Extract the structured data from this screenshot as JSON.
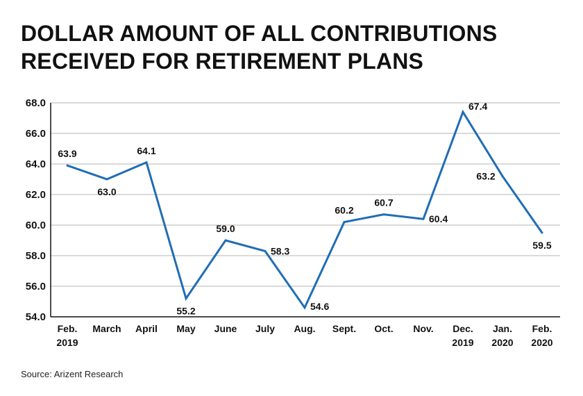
{
  "title": {
    "line1": "DOLLAR AMOUNT OF ALL CONTRIBUTIONS",
    "line2": "RECEIVED FOR RETIREMENT PLANS"
  },
  "source": "Source: Arizent Research",
  "colors": {
    "line": "#1f6db5",
    "grid": "#b5b5b5",
    "axis": "#111111"
  },
  "chart_data": {
    "type": "line",
    "categories": [
      [
        "Feb.",
        "2019"
      ],
      [
        "March"
      ],
      [
        "April"
      ],
      [
        "May"
      ],
      [
        "June"
      ],
      [
        "July"
      ],
      [
        "Aug."
      ],
      [
        "Sept."
      ],
      [
        "Oct."
      ],
      [
        "Nov."
      ],
      [
        "Dec.",
        "2019"
      ],
      [
        "Jan.",
        "2020"
      ],
      [
        "Feb.",
        "2020"
      ]
    ],
    "series": [
      {
        "values": [
          63.9,
          63.0,
          64.1,
          55.2,
          59.0,
          58.3,
          54.6,
          60.2,
          60.7,
          60.4,
          67.4,
          63.2,
          59.5
        ]
      }
    ],
    "data_labels": [
      "63.9",
      "63.0",
      "64.1",
      "55.2",
      "59.0",
      "58.3",
      "54.6",
      "60.2",
      "60.7",
      "60.4",
      "67.4",
      "63.2",
      "59.5"
    ],
    "yticks": [
      "54.0",
      "56.0",
      "58.0",
      "60.0",
      "62.0",
      "64.0",
      "66.0",
      "68.0"
    ],
    "ylim": [
      54,
      68
    ],
    "grid": true,
    "legend": "none",
    "xlabel": "",
    "ylabel": ""
  }
}
